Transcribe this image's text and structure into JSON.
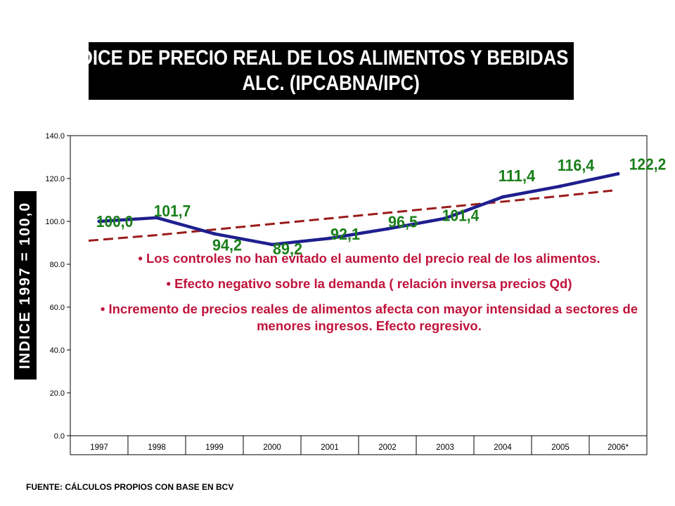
{
  "title_lines": [
    "INDICE DE PRECIO REAL  DE LOS ALIMENTOS Y BEBIDAS NO",
    "ALC. (IPCABNA/IPC)"
  ],
  "source": "FUENTE: CÁLCULOS PROPIOS CON BASE EN BCV",
  "notes": [
    "• Los controles no han evitado el aumento del precio real de los alimentos.",
    "• Efecto negativo sobre la demanda ( relación inversa precios Qd)",
    "• Incremento de precios reales de alimentos afecta con mayor intensidad a sectores de menores ingresos. Efecto regresivo."
  ],
  "colors": {
    "series": "#1f1f8f",
    "trend": "#9b1b1b",
    "data_labels": "#1a7f1a",
    "notes": "#c0143c"
  },
  "chart_data": {
    "type": "line",
    "title": "INDICE DE PRECIO REAL  DE LOS ALIMENTOS Y BEBIDAS NO ALC. (IPCABNA/IPC)",
    "xlabel": "",
    "ylabel": "INDICE 1997 = 100,0",
    "categories": [
      "1997",
      "1998",
      "1999",
      "2000",
      "2001",
      "2002",
      "2003",
      "2004",
      "2005",
      "2006*"
    ],
    "y_ticks": [
      "0.0",
      "20.0",
      "40.0",
      "60.0",
      "80.0",
      "100.0",
      "120.0",
      "140.0"
    ],
    "ylim": [
      0,
      140
    ],
    "grid": false,
    "legend": "none",
    "series": [
      {
        "values": [
          100.0,
          101.7,
          94.2,
          89.2,
          92.1,
          96.5,
          101.4,
          111.4,
          116.4,
          122.2
        ],
        "data_labels": [
          "100,0",
          "101,7",
          "94,2",
          "89,2",
          "92,1",
          "96,5",
          "101,4",
          "111,4",
          "116,4",
          "122,2"
        ],
        "style": "solid"
      },
      {
        "values": [
          91.0,
          93.6,
          96.2,
          98.8,
          101.4,
          104.0,
          106.6,
          109.2,
          111.8,
          114.4
        ],
        "style": "dashed"
      }
    ]
  }
}
